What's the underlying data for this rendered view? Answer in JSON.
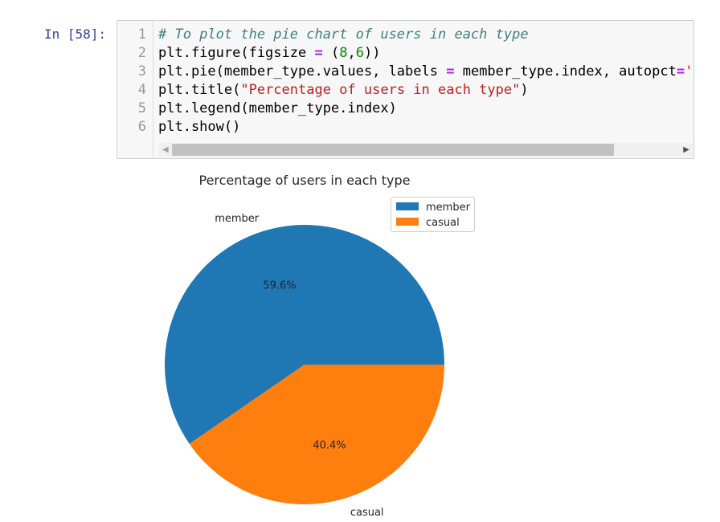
{
  "cell": {
    "prompt": "In [58]:",
    "lines": [
      {
        "n": "1",
        "segs": [
          [
            "# To plot the pie chart of users in each type",
            "comment"
          ]
        ]
      },
      {
        "n": "2",
        "segs": [
          [
            "plt.figure(figsize ",
            ""
          ],
          [
            "=",
            "op"
          ],
          [
            " (",
            ""
          ],
          [
            "8",
            "num"
          ],
          [
            ",",
            ""
          ],
          [
            "6",
            "num"
          ],
          [
            "))",
            ""
          ]
        ]
      },
      {
        "n": "3",
        "segs": [
          [
            "plt.pie(member_type.values, labels ",
            ""
          ],
          [
            "=",
            "op"
          ],
          [
            " member_type.index, autopct",
            ""
          ],
          [
            "=",
            "op"
          ],
          [
            "'",
            "str"
          ]
        ]
      },
      {
        "n": "4",
        "segs": [
          [
            "plt.title(",
            ""
          ],
          [
            "\"Percentage of users in each type\"",
            "str"
          ],
          [
            ")",
            ""
          ]
        ]
      },
      {
        "n": "5",
        "segs": [
          [
            "plt.legend(member_type.index)",
            ""
          ]
        ]
      },
      {
        "n": "6",
        "segs": [
          [
            "plt.show()",
            ""
          ]
        ]
      }
    ]
  },
  "chart_data": {
    "type": "pie",
    "title": "Percentage of users in each type",
    "categories": [
      "member",
      "casual"
    ],
    "values": [
      59.6,
      40.4
    ],
    "data_labels": [
      "59.6%",
      "40.4%"
    ],
    "colors": [
      "#1f77b4",
      "#ff7f0e"
    ],
    "start_angle_deg": 0,
    "direction": "counterclockwise",
    "legend": {
      "placement": "upper-right",
      "entries": [
        "member",
        "casual"
      ]
    }
  }
}
